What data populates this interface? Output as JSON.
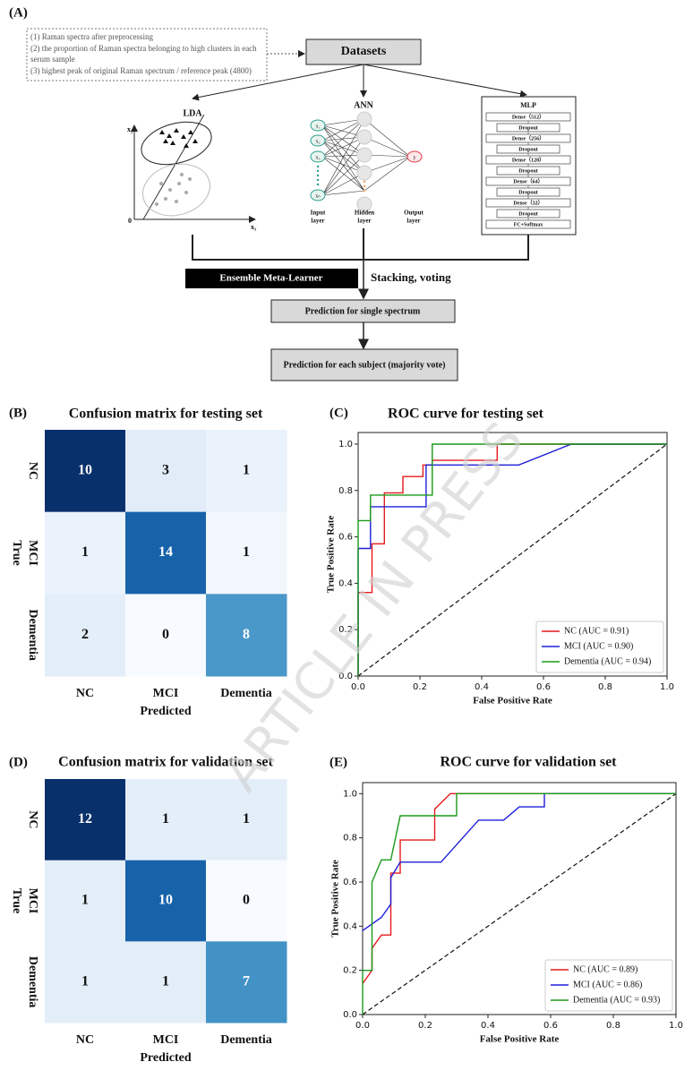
{
  "panel_labels": [
    "(A)",
    "(B)",
    "(C)",
    "(D)",
    "(E)"
  ],
  "watermark": "ARTICLE IN PRESS",
  "diagram": {
    "notes": [
      "(1) Raman spectra after preprocessing",
      "(2) the proportion of Raman spectra belonging to high clusters in each",
      "serum sample",
      "(3) highest peak of original Raman spectrum / reference peak (4800)"
    ],
    "datasets": "Datasets",
    "lda": {
      "title": "LDA",
      "y_axis": "x₂",
      "x_axis": "x₁",
      "origin": "0"
    },
    "ann": {
      "title": "ANN",
      "inputs": [
        "x₁",
        "x₂",
        "x₃",
        "xₙ"
      ],
      "output": "y",
      "layers": [
        "Input",
        "layer",
        "Hidden",
        "layer",
        "Output",
        "layer"
      ]
    },
    "mlp": {
      "title": "MLP",
      "layers": [
        "Dense（512）",
        "Dropout",
        "Dense（256）",
        "Dropout",
        "Dense（128）",
        "Dropout",
        "Dense（64）",
        "Dropout",
        "Dense（32）",
        "Dropout",
        "FC+Softmax"
      ]
    },
    "ensemble": "Ensemble Meta-Learner",
    "method": "Stacking, voting",
    "single": "Prediction for single spectrum",
    "subject": "Prediction for each subject (majority vote)"
  },
  "chart_data": [
    {
      "type": "heatmap",
      "title": "Confusion matrix for testing set",
      "x_categories": [
        "NC",
        "MCI",
        "Dementia"
      ],
      "y_categories": [
        "NC",
        "MCI",
        "Dementia"
      ],
      "xlabel": "Predicted",
      "ylabel": "True",
      "values": [
        [
          10,
          3,
          1
        ],
        [
          1,
          14,
          1
        ],
        [
          2,
          0,
          8
        ]
      ],
      "cell_colors": [
        [
          "#08306b",
          "#e1ecf8",
          "#eaf2fb"
        ],
        [
          "#eaf2fb",
          "#1763aa",
          "#f1f7fd"
        ],
        [
          "#e3eef9",
          "#f7fbff",
          "#4a98c9"
        ]
      ]
    },
    {
      "type": "line",
      "title": "ROC curve for testing set",
      "xlabel": "False Positive Rate",
      "ylabel": "True Positive Rate",
      "xlim": [
        0,
        1
      ],
      "ylim": [
        0,
        1.05
      ],
      "xticks": [
        {
          "value": 0,
          "label": "0.0"
        },
        0.2,
        0.4,
        0.6,
        0.8,
        {
          "value": 1,
          "label": "1.0"
        }
      ],
      "yticks": [
        {
          "value": 0,
          "label": "0.0"
        },
        0.2,
        0.4,
        0.6,
        0.8,
        {
          "value": 1,
          "label": "1.0"
        }
      ],
      "legend": "lower right",
      "series": [
        {
          "name": "NC (AUC = 0.91)",
          "color": "#e41a1c",
          "x": [
            0,
            0,
            0.045,
            0.045,
            0.085,
            0.085,
            0.145,
            0.145,
            0.21,
            0.21,
            0.24,
            0.24,
            0.45,
            0.45,
            1
          ],
          "y": [
            0,
            0.36,
            0.36,
            0.57,
            0.57,
            0.79,
            0.79,
            0.86,
            0.86,
            0.91,
            0.91,
            0.93,
            0.93,
            1,
            1
          ]
        },
        {
          "name": "MCI (AUC = 0.90)",
          "color": "#1f1fd6",
          "x": [
            0,
            0,
            0.04,
            0.04,
            0.22,
            0.22,
            0.52,
            0.69,
            1
          ],
          "y": [
            0,
            0.55,
            0.55,
            0.73,
            0.73,
            0.91,
            0.91,
            1,
            1
          ]
        },
        {
          "name": "Dementia (AUC = 0.94)",
          "color": "#1a9a1a",
          "x": [
            0,
            0,
            0.04,
            0.04,
            0.24,
            0.24,
            1
          ],
          "y": [
            0,
            0.67,
            0.67,
            0.78,
            0.78,
            1,
            1
          ]
        }
      ]
    },
    {
      "type": "heatmap",
      "title": "Confusion matrix for validation set",
      "x_categories": [
        "NC",
        "MCI",
        "Dementia"
      ],
      "y_categories": [
        "NC",
        "MCI",
        "Dementia"
      ],
      "xlabel": "Predicted",
      "ylabel": "True",
      "values": [
        [
          12,
          1,
          1
        ],
        [
          1,
          10,
          0
        ],
        [
          1,
          1,
          7
        ]
      ],
      "cell_colors": [
        [
          "#08306b",
          "#e3eef9",
          "#e3eef9"
        ],
        [
          "#e3eef9",
          "#1763aa",
          "#f7fbff"
        ],
        [
          "#e3eef9",
          "#e3eef9",
          "#4292c6"
        ]
      ]
    },
    {
      "type": "line",
      "title": "ROC curve for validation set",
      "xlabel": "False Positive Rate",
      "ylabel": "True Positive Rate",
      "xlim": [
        0,
        1
      ],
      "ylim": [
        0,
        1.05
      ],
      "xticks": [
        {
          "value": 0,
          "label": "0.0"
        },
        0.2,
        0.4,
        0.6,
        0.8,
        {
          "value": 1,
          "label": "1.0"
        }
      ],
      "yticks": [
        {
          "value": 0,
          "label": "0.0"
        },
        0.2,
        0.4,
        0.6,
        0.8,
        {
          "value": 1,
          "label": "1.0"
        }
      ],
      "legend": "lower right",
      "series": [
        {
          "name": "NC (AUC = 0.89)",
          "color": "#e41a1c",
          "x": [
            0,
            0.03,
            0.03,
            0.06,
            0.09,
            0.09,
            0.12,
            0.12,
            0.23,
            0.23,
            0.28,
            1
          ],
          "y": [
            0.14,
            0.2,
            0.3,
            0.36,
            0.36,
            0.64,
            0.64,
            0.79,
            0.79,
            0.93,
            1,
            1
          ]
        },
        {
          "name": "MCI (AUC = 0.86)",
          "color": "#1f1fd6",
          "x": [
            0,
            0.06,
            0.09,
            0.09,
            0.12,
            0.25,
            0.37,
            0.45,
            0.5,
            0.58,
            0.58,
            1
          ],
          "y": [
            0.38,
            0.44,
            0.5,
            0.62,
            0.69,
            0.69,
            0.88,
            0.88,
            0.94,
            0.94,
            1,
            1
          ]
        },
        {
          "name": "Dementia (AUC = 0.93)",
          "color": "#1a9a1a",
          "x": [
            0,
            0,
            0.03,
            0.03,
            0.06,
            0.09,
            0.12,
            0.3,
            0.3,
            1
          ],
          "y": [
            0,
            0.2,
            0.2,
            0.6,
            0.7,
            0.7,
            0.9,
            0.9,
            1,
            1
          ]
        }
      ]
    }
  ]
}
